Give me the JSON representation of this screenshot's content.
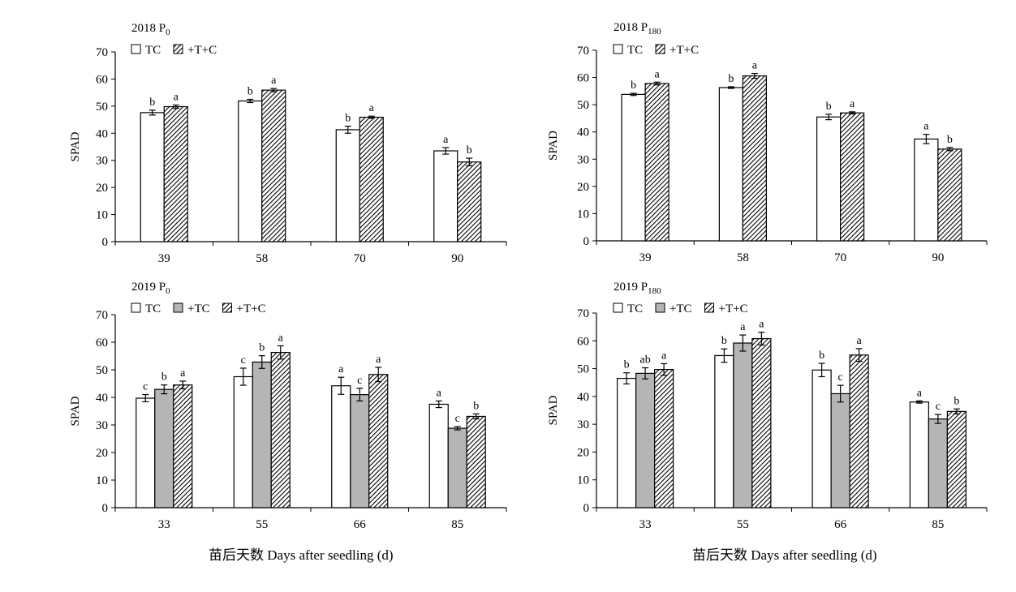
{
  "x_caption": "苗后天数 Days after seedling (d)",
  "chart_data": [
    {
      "type": "bar",
      "panel_title": "2018 P",
      "panel_title_sub": "0",
      "ylabel": "SPAD",
      "ylim": [
        0,
        70
      ],
      "yticks": [
        0,
        10,
        20,
        30,
        40,
        50,
        60,
        70
      ],
      "categories": [
        "39",
        "58",
        "70",
        "90"
      ],
      "series": [
        {
          "name": "TC",
          "fill": "white",
          "values": [
            47.6,
            51.9,
            41.3,
            33.5
          ],
          "errors": [
            0.9,
            0.6,
            1.3,
            1.2
          ],
          "letters": [
            "b",
            "b",
            "b",
            "a"
          ]
        },
        {
          "name": "+T+C",
          "fill": "hatch",
          "values": [
            49.8,
            55.9,
            45.9,
            29.4
          ],
          "errors": [
            0.6,
            0.6,
            0.4,
            1.4
          ],
          "letters": [
            "a",
            "a",
            "a",
            "b"
          ]
        }
      ]
    },
    {
      "type": "bar",
      "panel_title": "2018 P",
      "panel_title_sub": "180",
      "ylabel": "SPAD",
      "ylim": [
        0,
        70
      ],
      "yticks": [
        0,
        10,
        20,
        30,
        40,
        50,
        60,
        70
      ],
      "categories": [
        "39",
        "58",
        "70",
        "90"
      ],
      "series": [
        {
          "name": "TC",
          "fill": "white",
          "values": [
            53.8,
            56.3,
            45.5,
            37.4
          ],
          "errors": [
            0.4,
            0.3,
            1.0,
            1.7
          ],
          "letters": [
            "b",
            "b",
            "b",
            "a"
          ]
        },
        {
          "name": "+T+C",
          "fill": "hatch",
          "values": [
            57.8,
            60.6,
            47.0,
            33.7
          ],
          "errors": [
            0.5,
            0.9,
            0.4,
            0.6
          ],
          "letters": [
            "a",
            "a",
            "a",
            "b"
          ]
        }
      ]
    },
    {
      "type": "bar",
      "panel_title": "2019 P",
      "panel_title_sub": "0",
      "ylabel": "SPAD",
      "ylim": [
        0,
        70
      ],
      "yticks": [
        0,
        10,
        20,
        30,
        40,
        50,
        60,
        70
      ],
      "categories": [
        "33",
        "55",
        "66",
        "85"
      ],
      "series": [
        {
          "name": "TC",
          "fill": "white",
          "values": [
            39.7,
            47.5,
            44.2,
            37.5
          ],
          "errors": [
            1.3,
            3.1,
            3.1,
            1.2
          ],
          "letters": [
            "c",
            "c",
            "a",
            "a"
          ]
        },
        {
          "name": "+TC",
          "fill": "gray",
          "values": [
            42.9,
            52.8,
            41.0,
            28.8
          ],
          "errors": [
            1.6,
            2.3,
            2.3,
            0.6
          ],
          "letters": [
            "b",
            "b",
            "c",
            "c"
          ]
        },
        {
          "name": "+T+C",
          "fill": "hatch",
          "values": [
            44.5,
            56.3,
            48.3,
            33.1
          ],
          "errors": [
            1.4,
            2.4,
            2.6,
            0.9
          ],
          "letters": [
            "a",
            "a",
            "a",
            "b"
          ]
        }
      ]
    },
    {
      "type": "bar",
      "panel_title": "2019 P",
      "panel_title_sub": "180",
      "ylabel": "SPAD",
      "ylim": [
        0,
        70
      ],
      "yticks": [
        0,
        10,
        20,
        30,
        40,
        50,
        60,
        70
      ],
      "categories": [
        "33",
        "55",
        "66",
        "85"
      ],
      "series": [
        {
          "name": "TC",
          "fill": "white",
          "values": [
            46.5,
            54.7,
            49.5,
            38.0
          ],
          "errors": [
            2.0,
            2.4,
            2.4,
            0.4
          ],
          "letters": [
            "b",
            "b",
            "b",
            "a"
          ]
        },
        {
          "name": "+TC",
          "fill": "gray",
          "values": [
            48.3,
            59.2,
            41.0,
            31.9
          ],
          "errors": [
            2.0,
            2.9,
            3.0,
            1.6
          ],
          "letters": [
            "ab",
            "a",
            "c",
            "c"
          ]
        },
        {
          "name": "+T+C",
          "fill": "hatch",
          "values": [
            49.7,
            60.8,
            54.9,
            34.6
          ],
          "errors": [
            2.1,
            2.3,
            2.3,
            0.9
          ],
          "letters": [
            "a",
            "a",
            "a",
            "b"
          ]
        }
      ]
    }
  ]
}
